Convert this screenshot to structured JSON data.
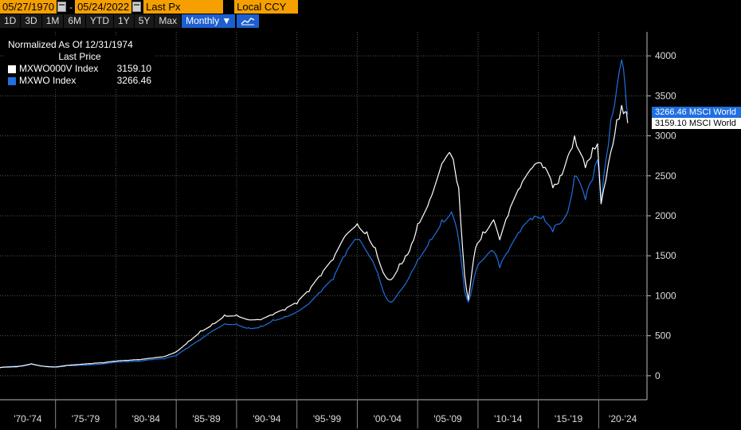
{
  "toolbar": {
    "start_date": "05/27/1970",
    "end_date": "05/24/2022",
    "separator": "-",
    "field": "Last Px",
    "currency": "Local CCY",
    "ranges": [
      "1D",
      "3D",
      "1M",
      "6M",
      "YTD",
      "1Y",
      "5Y",
      "Max"
    ],
    "frequency": "Monthly ▼",
    "accent": "#1e5fd0",
    "field_color": "#f5a000"
  },
  "legend": {
    "header": "Normalized As Of 12/31/1974",
    "subheader": "Last Price",
    "items": [
      {
        "name": "MXWO000V Index",
        "value": "3159.10",
        "color": "#ffffff"
      },
      {
        "name": "MXWO Index",
        "value": "3266.46",
        "color": "#1f6fe0"
      }
    ]
  },
  "tags": {
    "blue": "3266.46 MSCI World",
    "white": "3159.10 MSCI World"
  },
  "chart_data": {
    "type": "line",
    "ylim": [
      -300,
      4300
    ],
    "yticks": [
      0,
      500,
      1000,
      1500,
      2000,
      2500,
      3000,
      3500,
      4000
    ],
    "xlim": [
      1970.4,
      2024.0
    ],
    "x_categories": [
      "'70-'74",
      "'75-'79",
      "'80-'84",
      "'85-'89",
      "'90-'94",
      "'95-'99",
      "'00-'04",
      "'05-'09",
      "'10-'14",
      "'15-'19",
      "'20-'24"
    ],
    "x_boundaries": [
      1975,
      1980,
      1985,
      1990,
      1995,
      2000,
      2005,
      2010,
      2015,
      2020
    ],
    "series": [
      {
        "name": "MXWO000V Index",
        "color": "#ffffff",
        "points": [
          [
            1970.4,
            100
          ],
          [
            1972,
            120
          ],
          [
            1973,
            150
          ],
          [
            1974,
            120
          ],
          [
            1975,
            110
          ],
          [
            1976,
            130
          ],
          [
            1977,
            140
          ],
          [
            1978,
            150
          ],
          [
            1979,
            160
          ],
          [
            1980,
            180
          ],
          [
            1981,
            190
          ],
          [
            1982,
            200
          ],
          [
            1983,
            220
          ],
          [
            1984,
            240
          ],
          [
            1985,
            300
          ],
          [
            1986,
            430
          ],
          [
            1987,
            560
          ],
          [
            1988,
            650
          ],
          [
            1989,
            760
          ],
          [
            1990,
            760
          ],
          [
            1991,
            700
          ],
          [
            1992,
            700
          ],
          [
            1993,
            760
          ],
          [
            1994,
            820
          ],
          [
            1995,
            900
          ],
          [
            1996,
            1050
          ],
          [
            1997,
            1250
          ],
          [
            1998,
            1450
          ],
          [
            1999,
            1750
          ],
          [
            2000,
            1900
          ],
          [
            2000.8,
            1800
          ],
          [
            2001.5,
            1600
          ],
          [
            2002.3,
            1250
          ],
          [
            2002.8,
            1200
          ],
          [
            2003.5,
            1400
          ],
          [
            2004,
            1500
          ],
          [
            2004.5,
            1650
          ],
          [
            2005,
            1900
          ],
          [
            2006,
            2200
          ],
          [
            2007,
            2650
          ],
          [
            2007.8,
            2750
          ],
          [
            2008.4,
            2350
          ],
          [
            2008.9,
            1250
          ],
          [
            2009.2,
            950
          ],
          [
            2009.8,
            1600
          ],
          [
            2010.4,
            1800
          ],
          [
            2011.3,
            1950
          ],
          [
            2011.8,
            1700
          ],
          [
            2012.5,
            2000
          ],
          [
            2013.5,
            2350
          ],
          [
            2014.5,
            2600
          ],
          [
            2015.4,
            2600
          ],
          [
            2016.2,
            2350
          ],
          [
            2016.8,
            2500
          ],
          [
            2017.6,
            2800
          ],
          [
            2018.0,
            3000
          ],
          [
            2018.9,
            2600
          ],
          [
            2019.5,
            2850
          ],
          [
            2019.9,
            2900
          ],
          [
            2020.2,
            2150
          ],
          [
            2020.6,
            2450
          ],
          [
            2021.0,
            2800
          ],
          [
            2021.5,
            3200
          ],
          [
            2021.9,
            3380
          ],
          [
            2022.2,
            3300
          ],
          [
            2022.4,
            3159.1
          ]
        ]
      },
      {
        "name": "MXWO Index",
        "color": "#1f6fe0",
        "points": [
          [
            1970.4,
            100
          ],
          [
            1972,
            120
          ],
          [
            1973,
            150
          ],
          [
            1974,
            120
          ],
          [
            1975,
            110
          ],
          [
            1976,
            130
          ],
          [
            1977,
            135
          ],
          [
            1978,
            140
          ],
          [
            1979,
            150
          ],
          [
            1980,
            170
          ],
          [
            1981,
            175
          ],
          [
            1982,
            180
          ],
          [
            1983,
            200
          ],
          [
            1984,
            210
          ],
          [
            1985,
            250
          ],
          [
            1986,
            350
          ],
          [
            1987,
            450
          ],
          [
            1988,
            560
          ],
          [
            1989,
            650
          ],
          [
            1990,
            650
          ],
          [
            1991,
            600
          ],
          [
            1992,
            620
          ],
          [
            1993,
            700
          ],
          [
            1994,
            740
          ],
          [
            1995,
            800
          ],
          [
            1996,
            900
          ],
          [
            1997,
            1050
          ],
          [
            1998,
            1200
          ],
          [
            1999,
            1500
          ],
          [
            2000,
            1700
          ],
          [
            2000.8,
            1550
          ],
          [
            2001.5,
            1350
          ],
          [
            2002.3,
            1000
          ],
          [
            2002.8,
            920
          ],
          [
            2003.5,
            1050
          ],
          [
            2004,
            1150
          ],
          [
            2004.5,
            1300
          ],
          [
            2005,
            1450
          ],
          [
            2006,
            1700
          ],
          [
            2007,
            1950
          ],
          [
            2007.8,
            2050
          ],
          [
            2008.4,
            1700
          ],
          [
            2008.9,
            1050
          ],
          [
            2009.2,
            920
          ],
          [
            2009.8,
            1300
          ],
          [
            2010.4,
            1450
          ],
          [
            2011.3,
            1550
          ],
          [
            2011.8,
            1350
          ],
          [
            2012.5,
            1550
          ],
          [
            2013.5,
            1800
          ],
          [
            2014.5,
            1950
          ],
          [
            2015.4,
            2000
          ],
          [
            2016.2,
            1800
          ],
          [
            2016.8,
            1900
          ],
          [
            2017.6,
            2150
          ],
          [
            2018.0,
            2500
          ],
          [
            2018.9,
            2200
          ],
          [
            2019.5,
            2450
          ],
          [
            2019.9,
            2700
          ],
          [
            2020.2,
            2150
          ],
          [
            2020.6,
            2700
          ],
          [
            2021.0,
            3200
          ],
          [
            2021.5,
            3600
          ],
          [
            2021.9,
            3950
          ],
          [
            2022.2,
            3600
          ],
          [
            2022.4,
            3266.46
          ]
        ]
      }
    ]
  }
}
